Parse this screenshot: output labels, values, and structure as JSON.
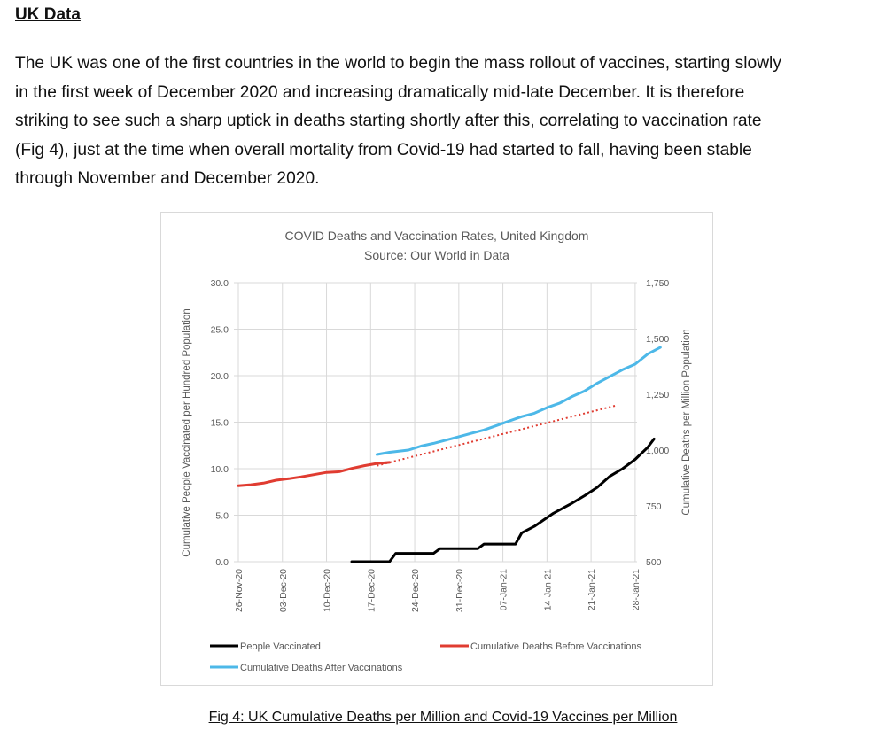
{
  "section": {
    "heading": "UK Data",
    "paragraph_lines": [
      "The UK was one of the first countries in the world to begin the mass rollout of vaccines, starting slowly",
      "in the first week of December 2020 and increasing dramatically mid-late December.  It is therefore",
      "striking to see such a sharp uptick in deaths starting shortly after this, correlating to vaccination rate",
      "(Fig 4), just at the time when overall mortality from Covid-19 had started to fall, having been stable",
      "through November and December 2020."
    ]
  },
  "figure": {
    "caption": "Fig 4: UK Cumulative Deaths per Million and Covid-19 Vaccines per Million"
  },
  "chart_data": {
    "type": "line",
    "title": "COVID Deaths and Vaccination Rates, United Kingdom",
    "subtitle": "Source: Our World in Data",
    "ylabel_left": "Cumulative People Vaccinated per Hundred Population",
    "ylabel_right": "Cumulative Deaths per Million Population",
    "ylim_left": [
      0,
      30
    ],
    "ylim_right": [
      500,
      1750
    ],
    "left_ticks": [
      "0.0",
      "5.0",
      "10.0",
      "15.0",
      "20.0",
      "25.0",
      "30.0"
    ],
    "right_ticks": [
      "500",
      "750",
      "1,000",
      "1,250",
      "1,500",
      "1,750"
    ],
    "x_day_range": [
      0,
      64
    ],
    "x_ticks": [
      {
        "day": 0,
        "label": "26-Nov-20"
      },
      {
        "day": 7,
        "label": "03-Dec-20"
      },
      {
        "day": 14,
        "label": "10-Dec-20"
      },
      {
        "day": 21,
        "label": "17-Dec-20"
      },
      {
        "day": 28,
        "label": "24-Dec-20"
      },
      {
        "day": 35,
        "label": "31-Dec-20"
      },
      {
        "day": 42,
        "label": "07-Jan-21"
      },
      {
        "day": 49,
        "label": "14-Jan-21"
      },
      {
        "day": 56,
        "label": "21-Jan-21"
      },
      {
        "day": 63,
        "label": "28-Jan-21"
      }
    ],
    "grid": true,
    "legend_position": "bottom",
    "series": [
      {
        "name": "People Vaccinated",
        "color": "#000000",
        "axis": "left",
        "style": "solid",
        "points": [
          [
            18,
            0.0
          ],
          [
            24,
            0.0
          ],
          [
            25,
            0.9
          ],
          [
            31,
            0.9
          ],
          [
            32,
            1.4
          ],
          [
            38,
            1.4
          ],
          [
            39,
            1.9
          ],
          [
            44,
            1.9
          ],
          [
            45,
            3.1
          ],
          [
            47,
            3.8
          ],
          [
            50,
            5.2
          ],
          [
            53,
            6.3
          ],
          [
            55,
            7.1
          ],
          [
            57,
            8.0
          ],
          [
            59,
            9.2
          ],
          [
            61,
            10.0
          ],
          [
            63,
            11.0
          ],
          [
            65,
            12.3
          ],
          [
            66,
            13.2
          ]
        ]
      },
      {
        "name": "Cumulative Deaths Before Vaccinations",
        "color": "#e03c31",
        "axis": "right",
        "style": "solid",
        "points": [
          [
            0,
            840
          ],
          [
            2,
            845
          ],
          [
            4,
            852
          ],
          [
            6,
            865
          ],
          [
            8,
            872
          ],
          [
            10,
            880
          ],
          [
            12,
            890
          ],
          [
            14,
            900
          ],
          [
            16,
            903
          ],
          [
            18,
            918
          ],
          [
            20,
            930
          ],
          [
            22,
            940
          ],
          [
            24,
            945
          ]
        ]
      },
      {
        "name": "Cumulative Deaths Before Vaccinations (trend)",
        "color": "#e03c31",
        "axis": "right",
        "style": "dotted",
        "points": [
          [
            22,
            930
          ],
          [
            60,
            1200
          ]
        ]
      },
      {
        "name": "Cumulative Deaths After Vaccinations",
        "color": "#4db8e8",
        "axis": "right",
        "style": "solid",
        "points": [
          [
            22,
            980
          ],
          [
            24,
            990
          ],
          [
            27,
            1000
          ],
          [
            29,
            1018
          ],
          [
            31,
            1030
          ],
          [
            33,
            1045
          ],
          [
            35,
            1060
          ],
          [
            37,
            1075
          ],
          [
            39,
            1090
          ],
          [
            41,
            1110
          ],
          [
            43,
            1130
          ],
          [
            45,
            1150
          ],
          [
            47,
            1165
          ],
          [
            49,
            1190
          ],
          [
            51,
            1210
          ],
          [
            53,
            1240
          ],
          [
            55,
            1265
          ],
          [
            57,
            1300
          ],
          [
            59,
            1330
          ],
          [
            61,
            1360
          ],
          [
            63,
            1385
          ],
          [
            65,
            1430
          ],
          [
            67,
            1460
          ]
        ]
      }
    ],
    "legend": [
      {
        "label": "People Vaccinated",
        "color": "#000000"
      },
      {
        "label": "Cumulative Deaths Before Vaccinations",
        "color": "#e03c31"
      },
      {
        "label": "Cumulative Deaths After Vaccinations",
        "color": "#4db8e8"
      }
    ]
  }
}
